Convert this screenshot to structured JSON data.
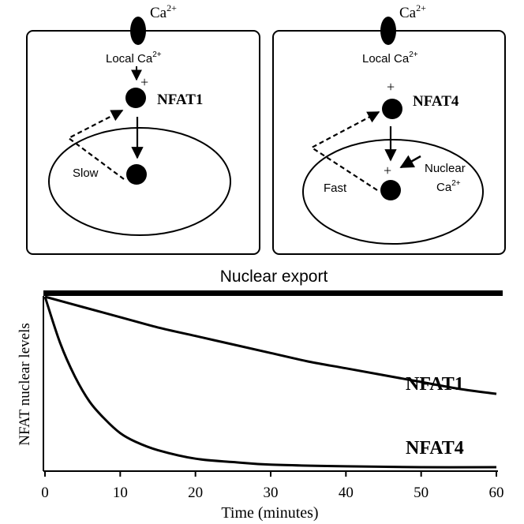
{
  "panels": [
    {
      "ca_label": "Ca",
      "ca_sup": "2+",
      "local_label": "Local Ca",
      "local_sup": "2+",
      "plus_import": "+",
      "protein": "NFAT1",
      "export_speed": "Slow"
    },
    {
      "ca_label": "Ca",
      "ca_sup": "2+",
      "local_label": "Local Ca",
      "local_sup": "2+",
      "plus_import": "+",
      "protein": "NFAT4",
      "export_speed": "Fast",
      "nuclear_plus": "+",
      "nuclear_label": "Nuclear",
      "nuclear_ca": "Ca",
      "nuclear_sup": "2+"
    }
  ],
  "bar_label": "Nuclear export",
  "chart_data": {
    "type": "line",
    "xlabel": "Time (minutes)",
    "ylabel": "NFAT nuclear levels",
    "xlim": [
      0,
      60
    ],
    "ylim": [
      0,
      1
    ],
    "x_ticks": [
      "0",
      "10",
      "20",
      "30",
      "40",
      "50",
      "60"
    ],
    "series": [
      {
        "name": "NFAT1",
        "x": [
          0,
          5,
          10,
          15,
          20,
          25,
          30,
          35,
          40,
          45,
          50,
          55,
          60
        ],
        "y": [
          1.0,
          0.94,
          0.88,
          0.82,
          0.77,
          0.72,
          0.67,
          0.62,
          0.58,
          0.54,
          0.5,
          0.46,
          0.43
        ]
      },
      {
        "name": "NFAT4",
        "x": [
          0,
          2,
          4,
          6,
          8,
          10,
          12,
          15,
          20,
          25,
          30,
          40,
          50,
          60
        ],
        "y": [
          1.0,
          0.73,
          0.53,
          0.38,
          0.28,
          0.2,
          0.15,
          0.1,
          0.05,
          0.03,
          0.015,
          0.005,
          0.0,
          0.0
        ]
      }
    ]
  }
}
